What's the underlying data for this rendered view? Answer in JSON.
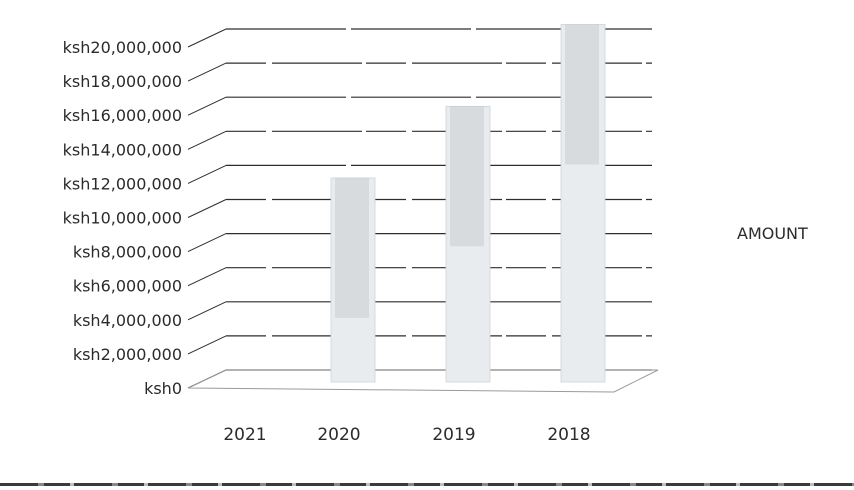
{
  "chart_data": {
    "type": "bar",
    "style": "3d-column",
    "categories": [
      "2021",
      "2020",
      "2019",
      "2018"
    ],
    "series": [
      {
        "name": "AMOUNT",
        "values": [
          0,
          11500000,
          15700000,
          20500000
        ]
      }
    ],
    "y_ticks": [
      "ksh0",
      "ksh2,000,000",
      "ksh4,000,000",
      "ksh6,000,000",
      "ksh8,000,000",
      "ksh10,000,000",
      "ksh12,000,000",
      "ksh14,000,000",
      "ksh16,000,000",
      "ksh18,000,000",
      "ksh20,000,000"
    ],
    "ylim": [
      0,
      21000000
    ],
    "grid": true,
    "legend_position": "right",
    "colors": {
      "bar": "#e9ecef",
      "grid": "#2e2e2e",
      "text": "#2b2b2b"
    }
  }
}
